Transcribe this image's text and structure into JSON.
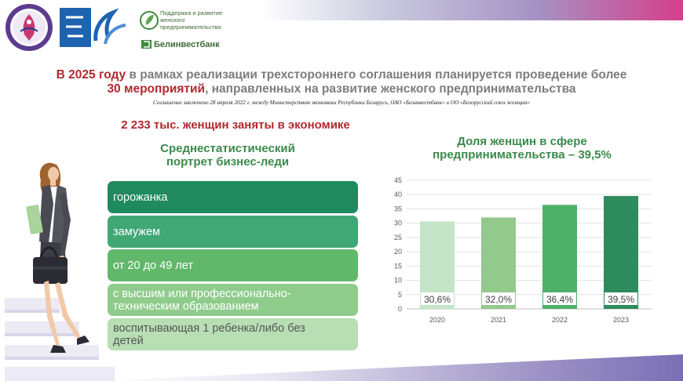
{
  "logos": {
    "support_text": "Поддержка и развитие женского предпринимательства",
    "bank_name": "Белинвестбанк"
  },
  "header": {
    "headline_part1_red": "В 2025 году",
    "headline_part1_gray": " в рамках реализации трехстороннего соглашения планируется проведение более",
    "headline_part2_red": "30 мероприятий",
    "headline_part2_gray": ", направленных на развитие женского предпринимательства",
    "agreement": "Соглашение заключено 28 апреля 2022 г. между Министерством экономики Республики Беларусь, ОАО «Белинвестбанк» и ОО «Белорусский союз женщин»"
  },
  "stat": "2 233 тыс. женщин заняты в экономике",
  "portrait": {
    "title_line1": "Среднестатистический",
    "title_line2": "портрет бизнес-леди",
    "items": [
      {
        "line1": "горожанка",
        "line2": "",
        "color": "#1f8a5e"
      },
      {
        "line1": "замужем",
        "line2": "",
        "color": "#3fa874"
      },
      {
        "line1": "от 20 до 49 лет",
        "line2": "",
        "color": "#62b86a"
      },
      {
        "line1": "с высшим или профессионально-",
        "line2": "техническим образованием",
        "color": "#8fcc8c"
      },
      {
        "line1": "воспитывающая 1 ребенка/либо без",
        "line2": "детей",
        "color": "#b8deb3"
      }
    ]
  },
  "chart_title": {
    "line1": "Доля женщин в сфере",
    "line2": "предпринимательства – 39,5%"
  },
  "chart_data": {
    "type": "bar",
    "categories": [
      "2020",
      "2021",
      "2022",
      "2023"
    ],
    "values": [
      30.6,
      32.0,
      36.4,
      39.5
    ],
    "data_labels": [
      "30,6%",
      "32,0%",
      "36,4%",
      "39,5%"
    ],
    "bar_colors": [
      "#c4e5c7",
      "#93c98c",
      "#4fb06a",
      "#2e8b5e"
    ],
    "ylim": [
      0,
      45
    ],
    "yticks": [
      0,
      5,
      10,
      15,
      20,
      25,
      30,
      35,
      40,
      45
    ],
    "grid": true
  }
}
